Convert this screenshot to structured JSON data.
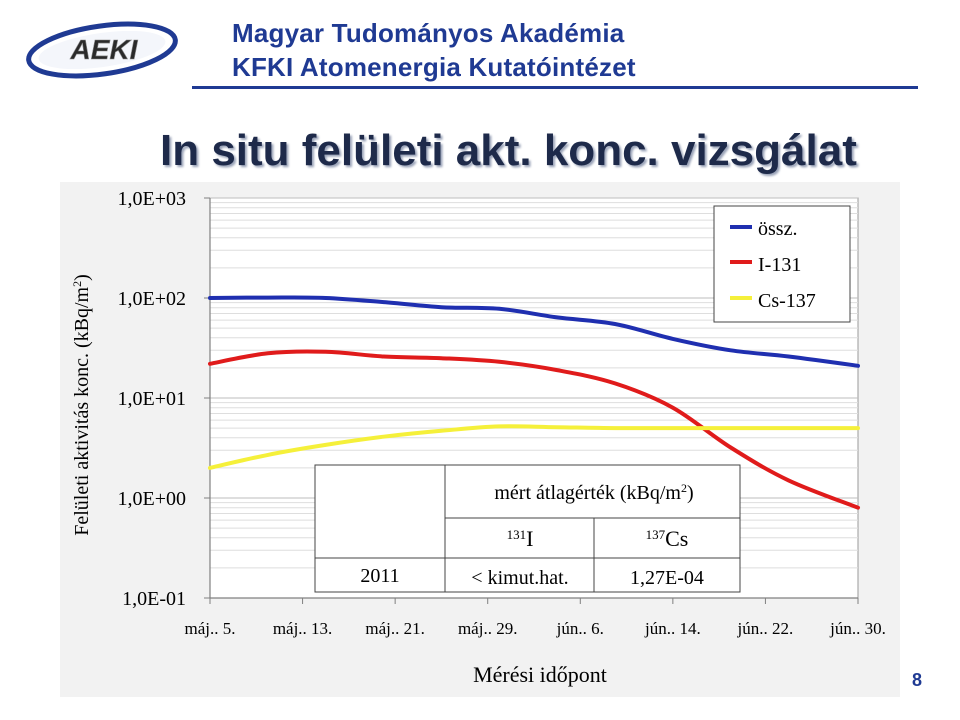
{
  "header": {
    "logo_text": "AEKI",
    "org_line1": "Magyar Tudományos Akadémia",
    "org_line2": "KFKI Atomenergia Kutatóintézet"
  },
  "slide_title": "In situ felületi akt. konc. vizsgálat",
  "page_number": "8",
  "chart_data": {
    "type": "line",
    "xlabel": "Mérési időpont",
    "ylabel": "Felületi aktivitás konc. (kBq/m²)",
    "ylabel_main": "Felületi aktivitás konc. (kBq/m",
    "ylabel_sup": "2",
    "ylabel_end": ")",
    "yscale": "log",
    "ylim": [
      0.1,
      1000
    ],
    "y_ticks": [
      {
        "value": 1000,
        "label": "1,0E+03"
      },
      {
        "value": 100,
        "label": "1,0E+02"
      },
      {
        "value": 10,
        "label": "1,0E+01"
      },
      {
        "value": 1,
        "label": "1,0E+00"
      },
      {
        "value": 0.1,
        "label": "1,0E-01"
      }
    ],
    "xlim": [
      "2011-05-05",
      "2011-06-30"
    ],
    "x_ticks": [
      {
        "date": "2011-05-05",
        "label": "máj.. 5."
      },
      {
        "date": "2011-05-13",
        "label": "máj.. 13."
      },
      {
        "date": "2011-05-21",
        "label": "máj.. 21."
      },
      {
        "date": "2011-05-29",
        "label": "máj.. 29."
      },
      {
        "date": "2011-06-06",
        "label": "jún.. 6."
      },
      {
        "date": "2011-06-14",
        "label": "jún.. 14."
      },
      {
        "date": "2011-06-22",
        "label": "jún.. 22."
      },
      {
        "date": "2011-06-30",
        "label": "jún.. 30."
      }
    ],
    "grid": true,
    "legend_position": "top-right",
    "series": [
      {
        "name": "össz.",
        "color": "#1f2fb0",
        "x": [
          "2011-05-05",
          "2011-05-10",
          "2011-05-15",
          "2011-05-20",
          "2011-05-25",
          "2011-05-30",
          "2011-06-04",
          "2011-06-09",
          "2011-06-14",
          "2011-06-19",
          "2011-06-24",
          "2011-06-30"
        ],
        "y": [
          100,
          101,
          100,
          91,
          81,
          78,
          64,
          55,
          39,
          30,
          26,
          21
        ]
      },
      {
        "name": "I-131",
        "color": "#e01b1b",
        "x": [
          "2011-05-05",
          "2011-05-10",
          "2011-05-15",
          "2011-05-20",
          "2011-05-25",
          "2011-05-30",
          "2011-06-04",
          "2011-06-09",
          "2011-06-14",
          "2011-06-19",
          "2011-06-24",
          "2011-06-30"
        ],
        "y": [
          22,
          28,
          29,
          26,
          25,
          23,
          19,
          14,
          8,
          3.2,
          1.5,
          0.8
        ]
      },
      {
        "name": "Cs-137",
        "color": "#f5f03a",
        "x": [
          "2011-05-05",
          "2011-05-10",
          "2011-05-15",
          "2011-05-20",
          "2011-05-25",
          "2011-05-30",
          "2011-06-04",
          "2011-06-09",
          "2011-06-14",
          "2011-06-19",
          "2011-06-24",
          "2011-06-30"
        ],
        "y": [
          2.0,
          2.7,
          3.4,
          4.1,
          4.7,
          5.2,
          5.1,
          5.0,
          5.0,
          5.0,
          5.0,
          5.0
        ]
      }
    ],
    "table": {
      "caption_main": "mért átlagérték (kBq/m",
      "caption_sup": "2",
      "caption_end": ")",
      "col1_sup": "131",
      "col1_sym": "I",
      "col2_sup": "137",
      "col2_sym": "Cs",
      "row_label": "2011",
      "col1_value": "< kimut.hat.",
      "col2_value": "1,27E-04"
    }
  }
}
